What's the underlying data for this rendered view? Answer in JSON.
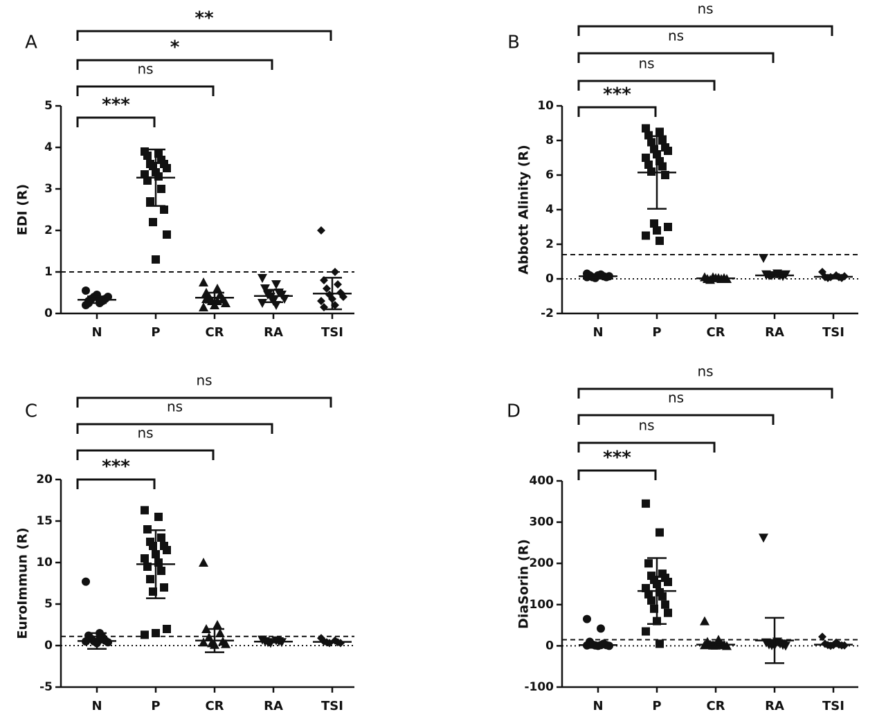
{
  "chart_data": [
    {
      "type": "scatter",
      "panel": "A",
      "ylabel": "EDI (R)",
      "categories": [
        "N",
        "P",
        "CR",
        "RA",
        "TSI"
      ],
      "markers": [
        "circle",
        "square",
        "triangle-up",
        "triangle-down",
        "diamond"
      ],
      "ylim": [
        0,
        5
      ],
      "yticks": [
        0,
        1,
        2,
        3,
        4,
        5
      ],
      "cutoff": 1,
      "zero_line": false,
      "groups": [
        [
          0.2,
          0.25,
          0.3,
          0.3,
          0.35,
          0.35,
          0.4,
          0.4,
          0.45,
          0.55,
          0.3,
          0.25
        ],
        [
          3.9,
          3.85,
          3.8,
          3.7,
          3.6,
          3.6,
          3.55,
          3.5,
          3.4,
          3.35,
          3.3,
          3.2,
          3.0,
          2.7,
          2.5,
          2.2,
          1.9,
          1.3
        ],
        [
          0.75,
          0.6,
          0.5,
          0.45,
          0.4,
          0.35,
          0.3,
          0.25,
          0.2,
          0.15,
          0.3,
          0.35
        ],
        [
          0.85,
          0.7,
          0.6,
          0.5,
          0.45,
          0.45,
          0.4,
          0.35,
          0.3,
          0.25,
          0.2
        ],
        [
          2.0,
          1.0,
          0.8,
          0.7,
          0.6,
          0.5,
          0.45,
          0.4,
          0.35,
          0.3,
          0.2,
          0.15
        ]
      ],
      "mean": [
        0.33,
        3.27,
        0.38,
        0.42,
        0.48
      ],
      "sd": [
        0.08,
        0.68,
        0.12,
        0.15,
        0.38
      ],
      "comparisons": [
        "***",
        "ns",
        "*",
        "**"
      ]
    },
    {
      "type": "scatter",
      "panel": "B",
      "ylabel": "Abbott Alinity (R)",
      "categories": [
        "N",
        "P",
        "CR",
        "RA",
        "TSI"
      ],
      "markers": [
        "circle",
        "square",
        "triangle-up",
        "triangle-down",
        "diamond"
      ],
      "ylim": [
        -2,
        10
      ],
      "yticks": [
        -2,
        0,
        2,
        4,
        6,
        8,
        10
      ],
      "cutoff": 1.4,
      "zero_line": true,
      "groups": [
        [
          0.3,
          0.25,
          0.2,
          0.15,
          0.1,
          0.1,
          0.05,
          0.15,
          0.2,
          0.1
        ],
        [
          8.7,
          8.5,
          8.3,
          8.0,
          7.9,
          7.6,
          7.5,
          7.4,
          7.2,
          7.0,
          6.8,
          6.6,
          6.5,
          6.2,
          6.0,
          3.2,
          3.0,
          2.8,
          2.5,
          2.2
        ],
        [
          0.1,
          0.05,
          0,
          0,
          -0.05,
          0.05,
          0.1,
          0,
          0.05
        ],
        [
          1.2,
          0.3,
          0.25,
          0.2,
          0.2,
          0.15,
          0.2,
          0.25
        ],
        [
          0.4,
          0.2,
          0.1,
          0.1,
          0.05,
          0.05,
          0.1,
          0.15
        ]
      ],
      "mean": [
        0.15,
        6.15,
        0.03,
        0.2,
        0.12
      ],
      "sd": [
        0.07,
        2.1,
        0.05,
        0.1,
        0.1
      ],
      "comparisons": [
        "***",
        "ns",
        "ns",
        "ns"
      ]
    },
    {
      "type": "scatter",
      "panel": "C",
      "ylabel": "EuroImmun (R)",
      "categories": [
        "N",
        "P",
        "CR",
        "RA",
        "TSI"
      ],
      "markers": [
        "circle",
        "square",
        "triangle-up",
        "triangle-down",
        "diamond"
      ],
      "ylim": [
        -5,
        20
      ],
      "yticks": [
        -5,
        0,
        5,
        10,
        15,
        20
      ],
      "cutoff": 1.1,
      "zero_line": true,
      "groups": [
        [
          7.7,
          1.5,
          1.2,
          1.0,
          0.8,
          0.6,
          0.5,
          0.4,
          0.3,
          0.5,
          0.7
        ],
        [
          16.3,
          15.5,
          14.0,
          13.0,
          12.5,
          12.0,
          12.0,
          11.5,
          11.0,
          10.5,
          10.0,
          9.5,
          9.0,
          8.0,
          7.0,
          6.5,
          2.0,
          1.5,
          1.3
        ],
        [
          10.0,
          2.5,
          2.0,
          1.5,
          1.0,
          0.5,
          0.3,
          0.2,
          0.1,
          0.4
        ],
        [
          0.7,
          0.6,
          0.5,
          0.5,
          0.4,
          0.4,
          0.3
        ],
        [
          0.9,
          0.6,
          0.5,
          0.4,
          0.4,
          0.3,
          0.3
        ]
      ],
      "mean": [
        0.55,
        9.8,
        0.6,
        0.48,
        0.45
      ],
      "sd": [
        0.95,
        4.1,
        1.4,
        0.1,
        0.1
      ],
      "comparisons": [
        "***",
        "ns",
        "ns",
        "ns"
      ]
    },
    {
      "type": "scatter",
      "panel": "D",
      "ylabel": "DiaSorin (R)",
      "categories": [
        "N",
        "P",
        "CR",
        "RA",
        "TSI"
      ],
      "markers": [
        "circle",
        "square",
        "triangle-up",
        "triangle-down",
        "diamond"
      ],
      "ylim": [
        -100,
        400
      ],
      "yticks": [
        -100,
        0,
        100,
        200,
        300,
        400
      ],
      "cutoff": 15,
      "zero_line": true,
      "groups": [
        [
          65,
          42,
          10,
          5,
          3,
          2,
          1,
          0,
          0,
          1,
          2,
          3
        ],
        [
          345,
          275,
          200,
          175,
          170,
          165,
          160,
          155,
          150,
          140,
          130,
          125,
          120,
          110,
          100,
          90,
          80,
          60,
          35,
          5
        ],
        [
          60,
          15,
          10,
          5,
          3,
          2,
          1,
          0,
          1,
          2
        ],
        [
          262,
          10,
          8,
          5,
          3,
          2,
          1,
          0,
          1
        ],
        [
          22,
          8,
          5,
          3,
          2,
          1,
          0,
          1,
          2
        ]
      ],
      "mean": [
        2,
        133,
        3,
        13,
        3
      ],
      "sd": [
        5,
        80,
        6,
        55,
        4
      ],
      "comparisons": [
        "***",
        "ns",
        "ns",
        "ns"
      ]
    }
  ]
}
